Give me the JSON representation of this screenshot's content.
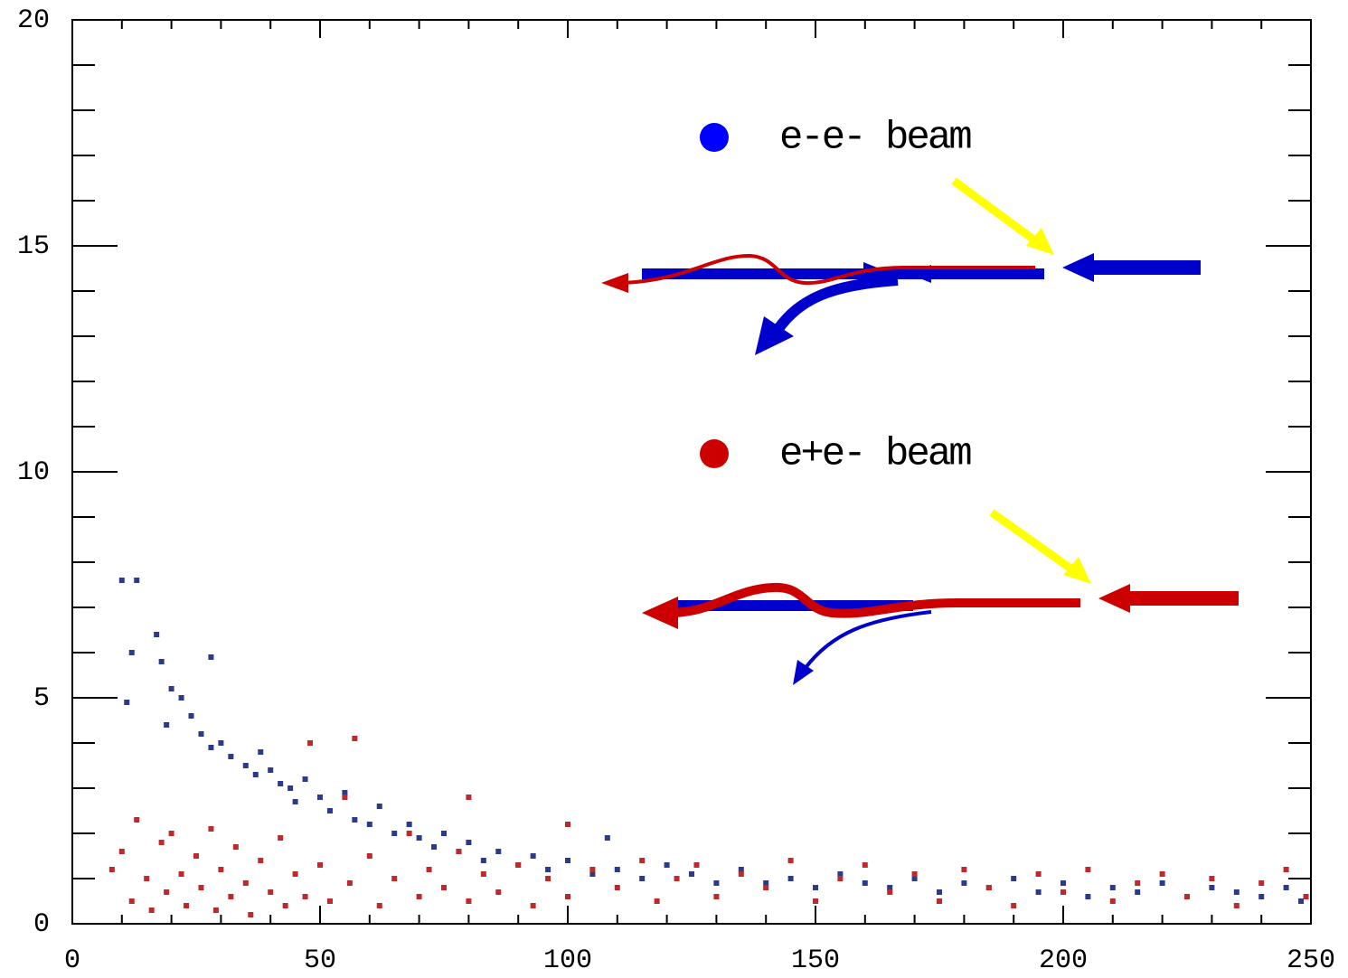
{
  "chart_data": {
    "type": "scatter",
    "xlim": [
      0,
      250
    ],
    "ylim": [
      0,
      20
    ],
    "xticks": [
      0,
      50,
      100,
      150,
      200,
      250
    ],
    "yticks": [
      0,
      5,
      10,
      15,
      20
    ],
    "x_minor_ticks": [
      10,
      20,
      30,
      40,
      60,
      70,
      80,
      90,
      110,
      120,
      130,
      140,
      160,
      170,
      180,
      190,
      210,
      220,
      230,
      240
    ],
    "y_minor_ticks": [
      1,
      2,
      3,
      4,
      6,
      7,
      8,
      9,
      11,
      12,
      13,
      14,
      16,
      17,
      18,
      19
    ],
    "grid": false,
    "legend_position": "upper right",
    "series": [
      {
        "name": "e-e- beam",
        "color": "#2b3a8c",
        "legend_color": "#0000ff",
        "x": [
          10,
          13,
          12,
          17,
          18,
          11,
          20,
          22,
          24,
          19,
          26,
          28,
          28,
          30,
          32,
          35,
          37,
          38,
          40,
          42,
          44,
          45,
          47,
          50,
          52,
          55,
          57,
          60,
          62,
          65,
          68,
          70,
          73,
          75,
          78,
          80,
          83,
          86,
          90,
          93,
          96,
          100,
          105,
          108,
          110,
          115,
          120,
          125,
          130,
          135,
          140,
          145,
          150,
          155,
          160,
          165,
          170,
          175,
          180,
          185,
          190,
          195,
          200,
          205,
          210,
          215,
          220,
          225,
          230,
          235,
          240,
          245,
          248
        ],
        "values": [
          7.6,
          7.6,
          6.0,
          6.4,
          5.8,
          4.9,
          5.2,
          5.0,
          4.6,
          4.4,
          4.2,
          5.9,
          3.9,
          4.0,
          3.7,
          3.5,
          3.3,
          3.8,
          3.4,
          3.1,
          3.0,
          2.7,
          3.2,
          2.8,
          2.5,
          2.9,
          2.3,
          2.2,
          2.6,
          2.0,
          2.2,
          1.9,
          1.7,
          2.0,
          1.6,
          1.8,
          1.4,
          1.6,
          1.3,
          1.5,
          1.2,
          1.4,
          1.1,
          1.9,
          1.2,
          1.0,
          1.3,
          1.1,
          0.9,
          1.2,
          0.9,
          1.0,
          0.8,
          1.1,
          0.9,
          0.8,
          1.0,
          0.7,
          0.9,
          0.8,
          1.0,
          0.7,
          0.9,
          0.6,
          0.8,
          0.7,
          0.9,
          0.6,
          0.8,
          0.7,
          0.6,
          0.8,
          0.5
        ]
      },
      {
        "name": "e+e- beam",
        "color": "#c0292b",
        "legend_color": "#cc0000",
        "x": [
          8,
          10,
          12,
          13,
          15,
          16,
          18,
          19,
          20,
          22,
          23,
          25,
          26,
          28,
          29,
          30,
          32,
          33,
          35,
          36,
          38,
          40,
          42,
          43,
          45,
          47,
          48,
          50,
          52,
          55,
          57,
          56,
          60,
          62,
          65,
          68,
          70,
          72,
          75,
          78,
          80,
          80,
          83,
          86,
          90,
          93,
          96,
          100,
          100,
          105,
          110,
          115,
          118,
          122,
          126,
          130,
          135,
          140,
          145,
          150,
          155,
          160,
          165,
          170,
          175,
          180,
          185,
          190,
          195,
          200,
          205,
          210,
          215,
          220,
          225,
          230,
          235,
          240,
          245,
          249
        ],
        "values": [
          1.2,
          1.6,
          0.5,
          2.3,
          1.0,
          0.3,
          1.8,
          0.7,
          2.0,
          1.1,
          0.4,
          1.5,
          0.8,
          2.1,
          0.3,
          1.2,
          0.6,
          1.7,
          0.9,
          0.2,
          1.4,
          0.7,
          1.9,
          0.4,
          1.1,
          0.6,
          4.0,
          1.3,
          0.5,
          2.8,
          4.1,
          0.9,
          1.5,
          0.4,
          1.0,
          2.0,
          0.6,
          1.2,
          0.8,
          1.6,
          2.8,
          0.5,
          1.1,
          0.7,
          1.3,
          0.4,
          1.0,
          2.2,
          0.6,
          1.2,
          0.8,
          1.4,
          0.5,
          1.0,
          1.3,
          0.6,
          1.1,
          0.8,
          1.4,
          0.5,
          1.0,
          1.3,
          0.7,
          1.1,
          0.5,
          1.2,
          0.8,
          0.4,
          1.1,
          0.7,
          1.2,
          0.5,
          0.9,
          1.1,
          0.6,
          1.0,
          0.4,
          0.9,
          1.2,
          0.6
        ]
      }
    ]
  }
}
